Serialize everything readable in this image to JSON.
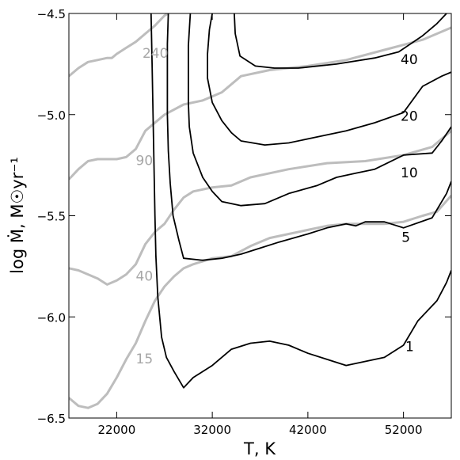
{
  "chart_data": {
    "type": "line",
    "title": "",
    "xlabel": "T, K",
    "ylabel": "log Ṁ, M☉yr⁻¹",
    "xlim": [
      17000,
      57000
    ],
    "ylim": [
      -6.5,
      -4.5
    ],
    "x_ticks": [
      22000,
      32000,
      42000,
      52000
    ],
    "x_tick_labels": [
      "22000",
      "32000",
      "42000",
      "52000"
    ],
    "y_ticks": [
      -6.5,
      -6.0,
      -5.5,
      -5.0,
      -4.5
    ],
    "y_tick_labels": [
      "−6.5",
      "−6.0",
      "−5.5",
      "−5.0",
      "−4.5"
    ],
    "grid": false,
    "legend": "none",
    "colors": {
      "black_contours": "#000000",
      "gray_contours": "#bdbdbd"
    },
    "series": [
      {
        "label": "240",
        "color": "#bdbdbd",
        "label_pos": [
          24700,
          -4.72
        ],
        "points": [
          [
            17000,
            -4.81
          ],
          [
            18000,
            -4.77
          ],
          [
            19000,
            -4.74
          ],
          [
            20000,
            -4.73
          ],
          [
            21000,
            -4.72
          ],
          [
            21500,
            -4.72
          ],
          [
            22000,
            -4.7
          ],
          [
            23000,
            -4.67
          ],
          [
            24000,
            -4.64
          ],
          [
            25000,
            -4.6
          ],
          [
            26000,
            -4.56
          ],
          [
            27000,
            -4.51
          ],
          [
            27400,
            -4.5
          ]
        ]
      },
      {
        "label": "90",
        "color": "#bdbdbd",
        "label_pos": [
          24000,
          -5.25
        ],
        "points": [
          [
            17000,
            -5.32
          ],
          [
            18000,
            -5.27
          ],
          [
            19000,
            -5.23
          ],
          [
            20000,
            -5.22
          ],
          [
            21000,
            -5.22
          ],
          [
            22000,
            -5.22
          ],
          [
            23000,
            -5.21
          ],
          [
            24000,
            -5.17
          ],
          [
            25000,
            -5.08
          ],
          [
            27000,
            -5.0
          ],
          [
            29000,
            -4.95
          ],
          [
            31000,
            -4.93
          ],
          [
            33000,
            -4.89
          ],
          [
            35000,
            -4.81
          ],
          [
            38000,
            -4.78
          ],
          [
            42000,
            -4.76
          ],
          [
            46000,
            -4.73
          ],
          [
            50000,
            -4.68
          ],
          [
            54000,
            -4.63
          ],
          [
            57000,
            -4.57
          ]
        ]
      },
      {
        "label": "40",
        "color": "#bdbdbd",
        "label_pos": [
          24000,
          -5.82
        ],
        "points": [
          [
            17000,
            -5.76
          ],
          [
            18000,
            -5.77
          ],
          [
            19000,
            -5.79
          ],
          [
            20000,
            -5.81
          ],
          [
            21000,
            -5.84
          ],
          [
            22000,
            -5.82
          ],
          [
            23000,
            -5.79
          ],
          [
            24000,
            -5.74
          ],
          [
            25000,
            -5.64
          ],
          [
            26000,
            -5.58
          ],
          [
            27000,
            -5.54
          ],
          [
            28000,
            -5.47
          ],
          [
            29000,
            -5.41
          ],
          [
            30000,
            -5.38
          ],
          [
            32000,
            -5.36
          ],
          [
            34000,
            -5.35
          ],
          [
            36000,
            -5.31
          ],
          [
            38000,
            -5.29
          ],
          [
            40000,
            -5.27
          ],
          [
            44000,
            -5.24
          ],
          [
            48000,
            -5.23
          ],
          [
            52000,
            -5.2
          ],
          [
            55000,
            -5.16
          ],
          [
            57000,
            -5.08
          ]
        ]
      },
      {
        "label": "15",
        "color": "#bdbdbd",
        "label_pos": [
          24000,
          -6.23
        ],
        "points": [
          [
            17000,
            -6.4
          ],
          [
            18000,
            -6.44
          ],
          [
            19000,
            -6.45
          ],
          [
            20000,
            -6.43
          ],
          [
            21000,
            -6.38
          ],
          [
            22000,
            -6.3
          ],
          [
            23000,
            -6.21
          ],
          [
            24000,
            -6.13
          ],
          [
            25000,
            -6.02
          ],
          [
            26000,
            -5.92
          ],
          [
            27000,
            -5.85
          ],
          [
            28000,
            -5.8
          ],
          [
            29000,
            -5.76
          ],
          [
            30000,
            -5.74
          ],
          [
            32000,
            -5.71
          ],
          [
            34000,
            -5.7
          ],
          [
            36000,
            -5.65
          ],
          [
            38000,
            -5.61
          ],
          [
            40000,
            -5.59
          ],
          [
            42000,
            -5.57
          ],
          [
            44000,
            -5.55
          ],
          [
            46000,
            -5.54
          ],
          [
            48000,
            -5.54
          ],
          [
            50000,
            -5.54
          ],
          [
            52000,
            -5.53
          ],
          [
            54000,
            -5.5
          ],
          [
            55500,
            -5.48
          ],
          [
            57000,
            -5.4
          ]
        ]
      },
      {
        "label": "40",
        "color": "#000000",
        "label_pos": [
          51700,
          -4.75
        ],
        "points": [
          [
            34300,
            -4.5
          ],
          [
            34400,
            -4.6
          ],
          [
            34900,
            -4.71
          ],
          [
            36500,
            -4.76
          ],
          [
            38500,
            -4.77
          ],
          [
            41000,
            -4.77
          ],
          [
            45000,
            -4.75
          ],
          [
            49000,
            -4.72
          ],
          [
            51500,
            -4.69
          ],
          [
            54000,
            -4.61
          ],
          [
            55500,
            -4.55
          ],
          [
            56500,
            -4.5
          ]
        ]
      },
      {
        "label": "20",
        "color": "#000000",
        "label_pos": [
          51700,
          -5.03
        ],
        "points": [
          [
            32000,
            -4.5
          ],
          [
            31700,
            -4.58
          ],
          [
            31500,
            -4.7
          ],
          [
            31500,
            -4.82
          ],
          [
            32000,
            -4.94
          ],
          [
            33000,
            -5.03
          ],
          [
            34000,
            -5.09
          ],
          [
            35000,
            -5.13
          ],
          [
            37500,
            -5.15
          ],
          [
            40000,
            -5.14
          ],
          [
            43000,
            -5.11
          ],
          [
            46000,
            -5.08
          ],
          [
            49000,
            -5.04
          ],
          [
            52000,
            -4.99
          ],
          [
            54000,
            -4.86
          ],
          [
            56000,
            -4.81
          ],
          [
            57000,
            -4.79
          ]
        ]
      },
      {
        "label": "10",
        "color": "#000000",
        "label_pos": [
          51700,
          -5.31
        ],
        "points": [
          [
            29700,
            -4.5
          ],
          [
            29500,
            -4.66
          ],
          [
            29500,
            -4.8
          ],
          [
            29500,
            -4.94
          ],
          [
            29600,
            -5.06
          ],
          [
            30000,
            -5.19
          ],
          [
            31000,
            -5.31
          ],
          [
            32000,
            -5.38
          ],
          [
            33000,
            -5.43
          ],
          [
            35000,
            -5.45
          ],
          [
            37500,
            -5.44
          ],
          [
            40000,
            -5.39
          ],
          [
            43000,
            -5.35
          ],
          [
            45000,
            -5.31
          ],
          [
            47000,
            -5.29
          ],
          [
            49000,
            -5.27
          ],
          [
            52000,
            -5.2
          ],
          [
            55000,
            -5.19
          ],
          [
            56000,
            -5.13
          ],
          [
            57000,
            -5.06
          ]
        ]
      },
      {
        "label": "5",
        "color": "#000000",
        "label_pos": [
          51800,
          -5.63
        ],
        "points": [
          [
            27400,
            -4.5
          ],
          [
            27300,
            -4.65
          ],
          [
            27300,
            -4.82
          ],
          [
            27300,
            -5.0
          ],
          [
            27400,
            -5.18
          ],
          [
            27600,
            -5.34
          ],
          [
            27900,
            -5.5
          ],
          [
            28500,
            -5.62
          ],
          [
            29000,
            -5.71
          ],
          [
            31000,
            -5.72
          ],
          [
            33000,
            -5.71
          ],
          [
            35000,
            -5.69
          ],
          [
            37000,
            -5.66
          ],
          [
            39000,
            -5.63
          ],
          [
            42000,
            -5.59
          ],
          [
            44000,
            -5.56
          ],
          [
            46000,
            -5.54
          ],
          [
            47000,
            -5.55
          ],
          [
            48000,
            -5.53
          ],
          [
            50000,
            -5.53
          ],
          [
            52000,
            -5.56
          ],
          [
            55000,
            -5.51
          ],
          [
            56500,
            -5.39
          ],
          [
            57000,
            -5.33
          ]
        ]
      },
      {
        "label": "1",
        "color": "#000000",
        "label_pos": [
          52200,
          -6.17
        ],
        "points": [
          [
            25600,
            -4.5
          ],
          [
            25700,
            -4.75
          ],
          [
            25800,
            -5.0
          ],
          [
            25900,
            -5.25
          ],
          [
            26000,
            -5.5
          ],
          [
            26100,
            -5.7
          ],
          [
            26300,
            -5.9
          ],
          [
            26700,
            -6.1
          ],
          [
            27200,
            -6.2
          ],
          [
            28000,
            -6.27
          ],
          [
            29000,
            -6.35
          ],
          [
            30000,
            -6.3
          ],
          [
            32000,
            -6.24
          ],
          [
            34000,
            -6.16
          ],
          [
            36000,
            -6.13
          ],
          [
            38000,
            -6.12
          ],
          [
            40000,
            -6.14
          ],
          [
            42000,
            -6.18
          ],
          [
            44000,
            -6.21
          ],
          [
            46000,
            -6.24
          ],
          [
            48000,
            -6.22
          ],
          [
            50000,
            -6.2
          ],
          [
            52000,
            -6.14
          ],
          [
            53500,
            -6.02
          ],
          [
            55500,
            -5.92
          ],
          [
            56500,
            -5.83
          ],
          [
            57000,
            -5.77
          ]
        ]
      }
    ]
  }
}
